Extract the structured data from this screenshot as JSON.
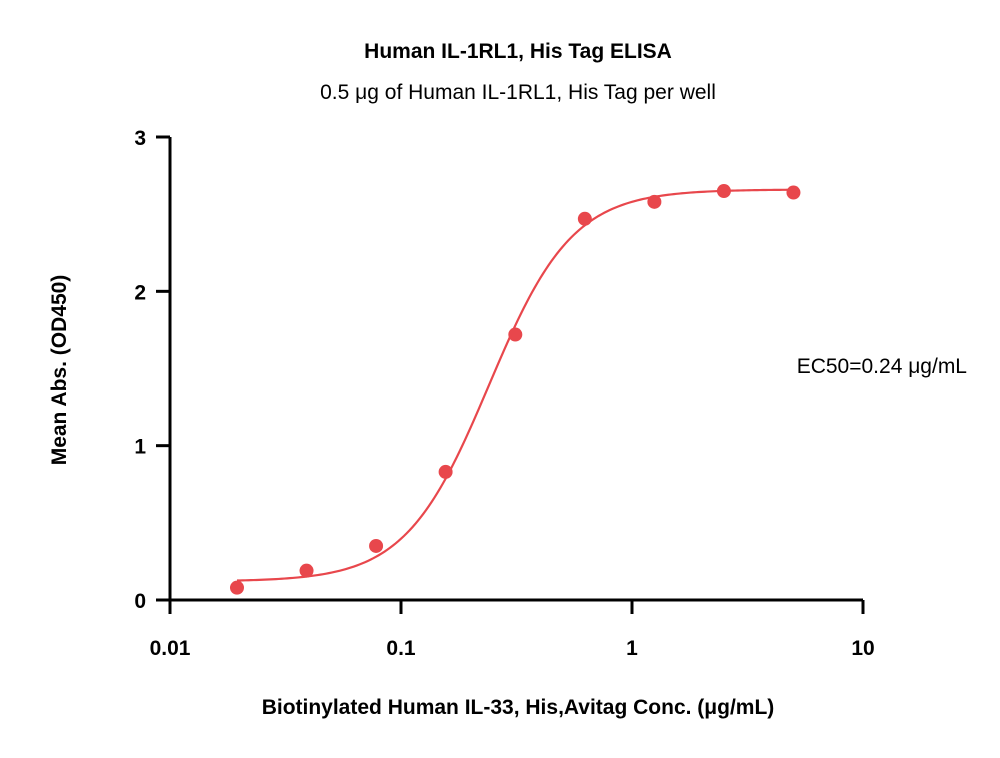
{
  "chart_data": {
    "type": "scatter",
    "title": "Human IL-1RL1, His Tag ELISA",
    "subtitle": "0.5 μg of Human IL-1RL1, His Tag per well",
    "xlabel": "Biotinylated Human IL-33, His,Avitag Conc. (μg/mL)",
    "ylabel": "Mean Abs. (OD450)",
    "xscale": "log",
    "xlim": [
      0.01,
      10
    ],
    "ylim": [
      0,
      3
    ],
    "x_ticks": [
      "0.01",
      "0.1",
      "1",
      "10"
    ],
    "y_ticks": [
      "0",
      "1",
      "2",
      "3"
    ],
    "grid": false,
    "annotation": "EC50=0.24 μg/mL",
    "colors": {
      "series": "#e8474c"
    },
    "series": [
      {
        "x": [
          0.0195,
          0.039,
          0.078,
          0.156,
          0.3125,
          0.625,
          1.25,
          2.5,
          5
        ],
        "values": [
          0.08,
          0.19,
          0.35,
          0.83,
          1.72,
          2.47,
          2.58,
          2.65,
          2.64
        ]
      }
    ],
    "fit": {
      "model": "4PL",
      "bottom": 0.12,
      "top": 2.66,
      "ec50": 0.24,
      "hill": 2.4
    }
  }
}
